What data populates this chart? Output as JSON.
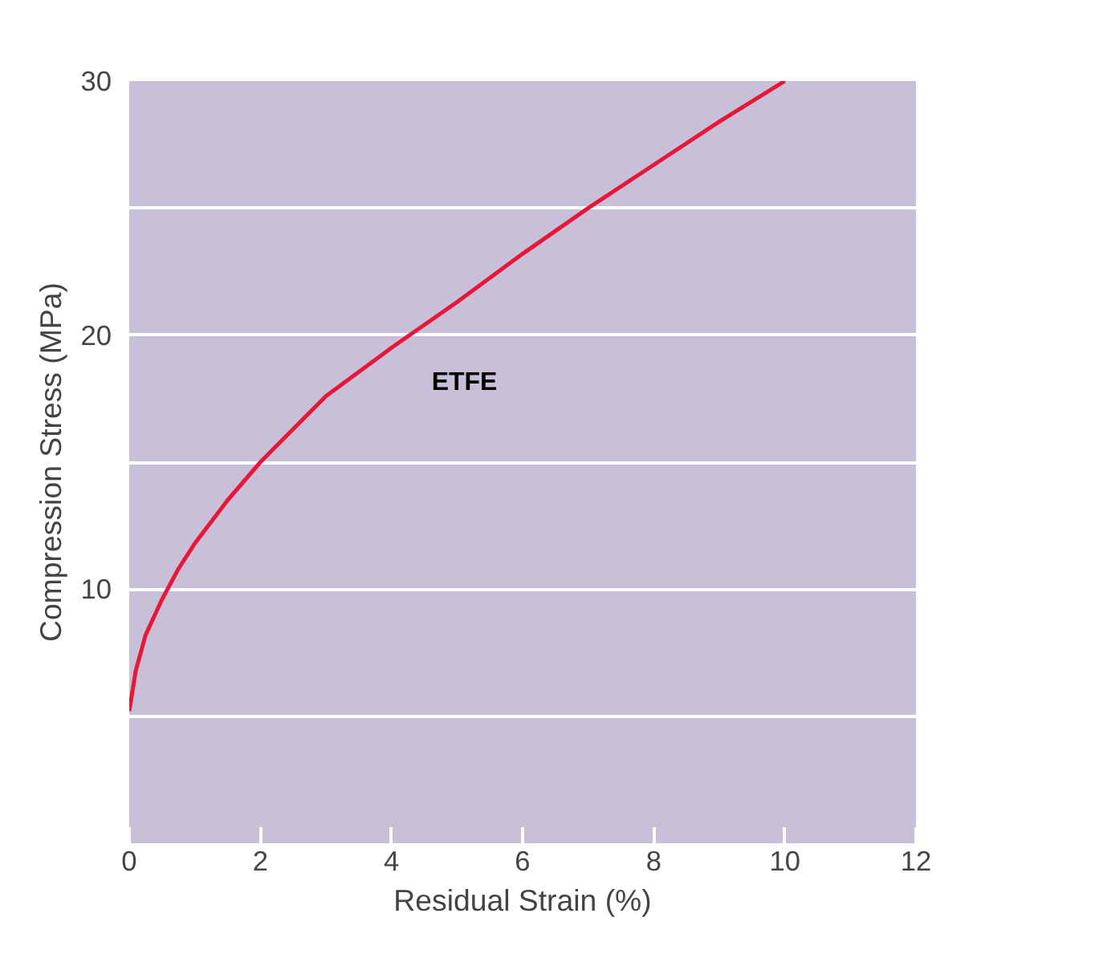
{
  "chart_data": {
    "type": "line",
    "xlabel": "Residual Strain (%)",
    "ylabel": "Compression Stress (MPa)",
    "x": [
      0,
      0.1,
      0.25,
      0.5,
      0.75,
      1,
      1.5,
      2,
      3,
      4,
      5,
      6,
      7,
      8,
      9,
      10
    ],
    "series": [
      {
        "name": "ETFE",
        "color": "#e8173a",
        "values": [
          5.2,
          6.8,
          8.2,
          9.6,
          10.8,
          11.8,
          13.5,
          15,
          17.6,
          19.5,
          21.3,
          23.2,
          25,
          26.7,
          28.4,
          30
        ]
      }
    ],
    "xlim": [
      0,
      12
    ],
    "ylim": [
      0,
      30
    ],
    "xticks": [
      0,
      2,
      4,
      6,
      8,
      10,
      12
    ],
    "yticks": [
      {
        "value": 5,
        "label": null
      },
      10,
      {
        "value": 15,
        "label": null
      },
      20,
      {
        "value": 25,
        "label": null
      },
      30
    ],
    "grid": "y",
    "legend": false,
    "marker": "none",
    "line_style": "solid"
  }
}
